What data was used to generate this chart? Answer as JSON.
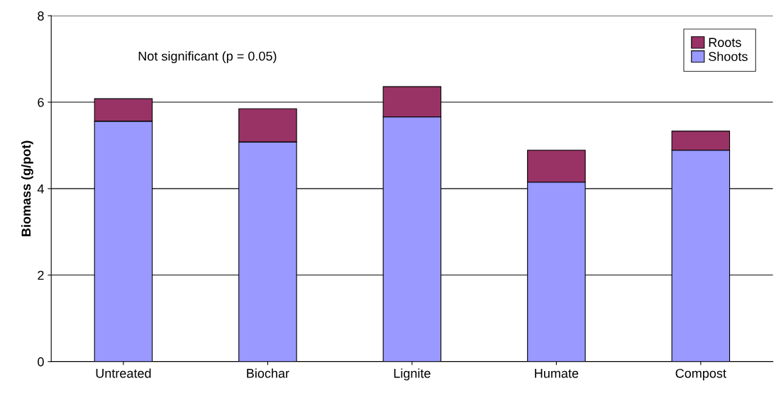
{
  "chart_data": {
    "type": "bar",
    "stacked": true,
    "ylabel": "Biomass (g/pot)",
    "categories": [
      "Untreated",
      "Biochar",
      "Lignite",
      "Humate",
      "Compost"
    ],
    "series": [
      {
        "name": "Shoots",
        "color": "#9999ff",
        "values": [
          5.56,
          5.08,
          5.66,
          4.15,
          4.89
        ]
      },
      {
        "name": "Roots",
        "color": "#993366",
        "values": [
          0.52,
          0.77,
          0.7,
          0.74,
          0.44
        ]
      }
    ],
    "ylim": [
      0,
      8
    ],
    "yticks": [
      0,
      2,
      4,
      6,
      8
    ],
    "grid": "y",
    "legend": "top right",
    "annotations": [
      "Not significant (p = 0.05)"
    ]
  }
}
